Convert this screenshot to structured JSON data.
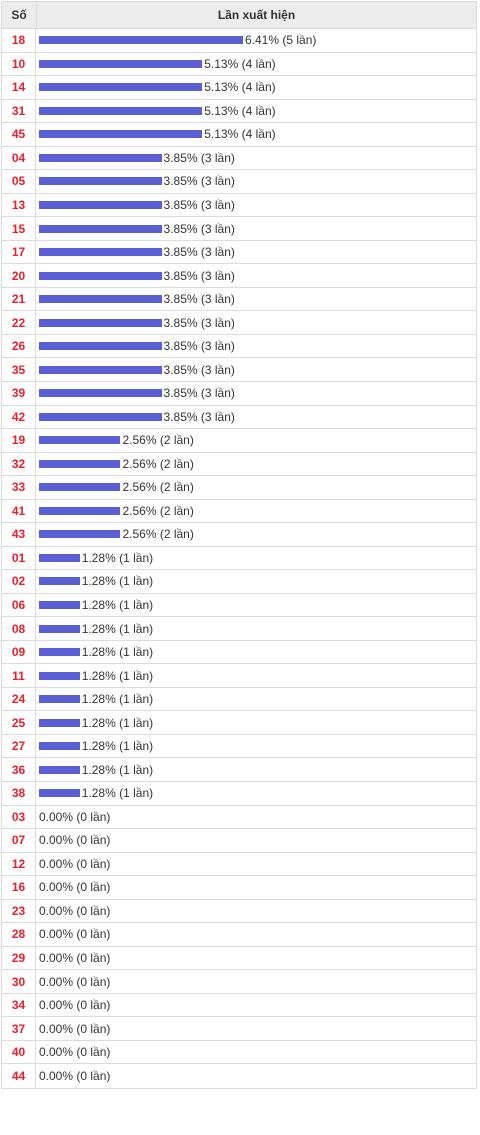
{
  "table": {
    "col_number": "Số",
    "col_frequency": "Lần xuất hiện"
  },
  "colors": {
    "bar": "#5a5fd6",
    "number": "#e8202a"
  },
  "chart_data": {
    "type": "bar",
    "orientation": "horizontal",
    "xlim": [
      0,
      6.41
    ],
    "categories": [
      "18",
      "10",
      "14",
      "31",
      "45",
      "04",
      "05",
      "13",
      "15",
      "17",
      "20",
      "21",
      "22",
      "26",
      "35",
      "39",
      "42",
      "19",
      "32",
      "33",
      "41",
      "43",
      "01",
      "02",
      "06",
      "08",
      "09",
      "11",
      "24",
      "25",
      "27",
      "36",
      "38",
      "03",
      "07",
      "12",
      "16",
      "23",
      "28",
      "29",
      "30",
      "34",
      "37",
      "40",
      "44"
    ],
    "values": [
      6.41,
      5.13,
      5.13,
      5.13,
      5.13,
      3.85,
      3.85,
      3.85,
      3.85,
      3.85,
      3.85,
      3.85,
      3.85,
      3.85,
      3.85,
      3.85,
      3.85,
      2.56,
      2.56,
      2.56,
      2.56,
      2.56,
      1.28,
      1.28,
      1.28,
      1.28,
      1.28,
      1.28,
      1.28,
      1.28,
      1.28,
      1.28,
      1.28,
      0.0,
      0.0,
      0.0,
      0.0,
      0.0,
      0.0,
      0.0,
      0.0,
      0.0,
      0.0,
      0.0,
      0.0
    ],
    "labels": [
      "6.41% (5 lần)",
      "5.13% (4 lần)",
      "5.13% (4 lần)",
      "5.13% (4 lần)",
      "5.13% (4 lần)",
      "3.85% (3 lần)",
      "3.85% (3 lần)",
      "3.85% (3 lần)",
      "3.85% (3 lần)",
      "3.85% (3 lần)",
      "3.85% (3 lần)",
      "3.85% (3 lần)",
      "3.85% (3 lần)",
      "3.85% (3 lần)",
      "3.85% (3 lần)",
      "3.85% (3 lần)",
      "3.85% (3 lần)",
      "2.56% (2 lần)",
      "2.56% (2 lần)",
      "2.56% (2 lần)",
      "2.56% (2 lần)",
      "2.56% (2 lần)",
      "1.28% (1 lần)",
      "1.28% (1 lần)",
      "1.28% (1 lần)",
      "1.28% (1 lần)",
      "1.28% (1 lần)",
      "1.28% (1 lần)",
      "1.28% (1 lần)",
      "1.28% (1 lần)",
      "1.28% (1 lần)",
      "1.28% (1 lần)",
      "1.28% (1 lần)",
      "0.00% (0 lần)",
      "0.00% (0 lần)",
      "0.00% (0 lần)",
      "0.00% (0 lần)",
      "0.00% (0 lần)",
      "0.00% (0 lần)",
      "0.00% (0 lần)",
      "0.00% (0 lần)",
      "0.00% (0 lần)",
      "0.00% (0 lần)",
      "0.00% (0 lần)",
      "0.00% (0 lần)"
    ]
  }
}
